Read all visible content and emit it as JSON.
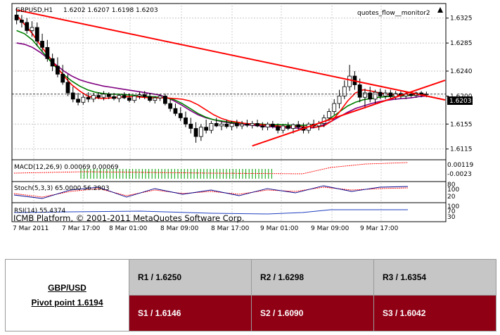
{
  "chart_data": {
    "type": "candlestick",
    "header": {
      "symbol": "GBPUSD,H1",
      "ohlc": "1.6202 1.6207 1.6198 1.6203",
      "indicator_name": "quotes_flow__monitor2"
    },
    "current_price": "1.6203",
    "y_ticks": [
      "1.6325",
      "1.6285",
      "1.6240",
      "1.6200",
      "1.6155",
      "1.6115"
    ],
    "ylim": [
      1.61,
      1.6345
    ],
    "x_labels": [
      "7 Mar 2011",
      "7 Mar 17:00",
      "8 Mar 01:00",
      "8 Mar 09:00",
      "8 Mar 17:00",
      "9 Mar 01:00",
      "9 Mar 09:00",
      "9 Mar 17:00"
    ],
    "candles": [
      [
        1.633,
        1.6342,
        1.6315,
        1.6322
      ],
      [
        1.6322,
        1.633,
        1.631,
        1.6318
      ],
      [
        1.6318,
        1.6325,
        1.63,
        1.6305
      ],
      [
        1.6305,
        1.632,
        1.6295,
        1.631
      ],
      [
        1.631,
        1.6318,
        1.628,
        1.6288
      ],
      [
        1.6288,
        1.63,
        1.627,
        1.6278
      ],
      [
        1.6278,
        1.629,
        1.6255,
        1.626
      ],
      [
        1.626,
        1.6268,
        1.624,
        1.6248
      ],
      [
        1.6248,
        1.6262,
        1.623,
        1.6235
      ],
      [
        1.6235,
        1.625,
        1.6218,
        1.6222
      ],
      [
        1.6222,
        1.6235,
        1.62,
        1.6205
      ],
      [
        1.6205,
        1.6215,
        1.619,
        1.6195
      ],
      [
        1.6195,
        1.6205,
        1.6185,
        1.619
      ],
      [
        1.619,
        1.6202,
        1.6186,
        1.6198
      ],
      [
        1.6198,
        1.6206,
        1.619,
        1.6195
      ],
      [
        1.6195,
        1.6205,
        1.619,
        1.6201
      ],
      [
        1.6201,
        1.6206,
        1.6195,
        1.6198
      ],
      [
        1.6198,
        1.6208,
        1.6193,
        1.6203
      ],
      [
        1.6203,
        1.6206,
        1.6195,
        1.6199
      ],
      [
        1.6199,
        1.6205,
        1.6193,
        1.6196
      ],
      [
        1.6196,
        1.6203,
        1.619,
        1.6201
      ],
      [
        1.6201,
        1.6206,
        1.6195,
        1.6197
      ],
      [
        1.6197,
        1.6204,
        1.619,
        1.6193
      ],
      [
        1.6193,
        1.6202,
        1.6189,
        1.62
      ],
      [
        1.62,
        1.6207,
        1.6195,
        1.6202
      ],
      [
        1.6202,
        1.6208,
        1.6195,
        1.6199
      ],
      [
        1.6199,
        1.6205,
        1.619,
        1.6193
      ],
      [
        1.6193,
        1.62,
        1.6188,
        1.6197
      ],
      [
        1.6197,
        1.6203,
        1.6192,
        1.62
      ],
      [
        1.62,
        1.6204,
        1.6185,
        1.6188
      ],
      [
        1.6188,
        1.6195,
        1.6175,
        1.618
      ],
      [
        1.618,
        1.6188,
        1.6168,
        1.6172
      ],
      [
        1.6172,
        1.6182,
        1.616,
        1.6165
      ],
      [
        1.6165,
        1.6175,
        1.615,
        1.6155
      ],
      [
        1.6155,
        1.6165,
        1.614,
        1.6148
      ],
      [
        1.6148,
        1.6158,
        1.6125,
        1.6135
      ],
      [
        1.6135,
        1.6155,
        1.6128,
        1.615
      ],
      [
        1.615,
        1.6162,
        1.614,
        1.6145
      ],
      [
        1.6145,
        1.616,
        1.614,
        1.6156
      ],
      [
        1.6156,
        1.6165,
        1.615,
        1.6152
      ],
      [
        1.6152,
        1.616,
        1.6145,
        1.6155
      ],
      [
        1.6155,
        1.6162,
        1.6148,
        1.6151
      ],
      [
        1.6151,
        1.616,
        1.6145,
        1.6156
      ],
      [
        1.6156,
        1.6162,
        1.6148,
        1.6152
      ],
      [
        1.6152,
        1.616,
        1.6147,
        1.6155
      ],
      [
        1.6155,
        1.6162,
        1.615,
        1.6153
      ],
      [
        1.6153,
        1.616,
        1.6148,
        1.6156
      ],
      [
        1.6156,
        1.6162,
        1.615,
        1.6152
      ],
      [
        1.6152,
        1.6158,
        1.6145,
        1.615
      ],
      [
        1.615,
        1.6158,
        1.6145,
        1.6155
      ],
      [
        1.6155,
        1.616,
        1.6148,
        1.6151
      ],
      [
        1.6151,
        1.6156,
        1.614,
        1.6145
      ],
      [
        1.6145,
        1.6155,
        1.614,
        1.6152
      ],
      [
        1.6152,
        1.6158,
        1.6145,
        1.6148
      ],
      [
        1.6148,
        1.6156,
        1.614,
        1.6154
      ],
      [
        1.6154,
        1.616,
        1.6145,
        1.615
      ],
      [
        1.615,
        1.6157,
        1.614,
        1.6145
      ],
      [
        1.6145,
        1.6158,
        1.614,
        1.6155
      ],
      [
        1.6155,
        1.6162,
        1.6148,
        1.6152
      ],
      [
        1.6152,
        1.616,
        1.6145,
        1.6156
      ],
      [
        1.6156,
        1.617,
        1.615,
        1.6165
      ],
      [
        1.6165,
        1.618,
        1.616,
        1.6175
      ],
      [
        1.6175,
        1.6195,
        1.617,
        1.6188
      ],
      [
        1.6188,
        1.621,
        1.618,
        1.62
      ],
      [
        1.62,
        1.6225,
        1.6195,
        1.6215
      ],
      [
        1.6215,
        1.625,
        1.6208,
        1.6232
      ],
      [
        1.6232,
        1.624,
        1.621,
        1.6218
      ],
      [
        1.6218,
        1.6228,
        1.619,
        1.6198
      ],
      [
        1.6198,
        1.6212,
        1.618,
        1.6205
      ],
      [
        1.6205,
        1.6215,
        1.619,
        1.6195
      ],
      [
        1.6195,
        1.621,
        1.6188,
        1.6206
      ],
      [
        1.6206,
        1.6212,
        1.6195,
        1.62
      ],
      [
        1.62,
        1.621,
        1.6195,
        1.6205
      ],
      [
        1.6205,
        1.621,
        1.6196,
        1.6199
      ],
      [
        1.6199,
        1.6208,
        1.6194,
        1.6204
      ],
      [
        1.6204,
        1.6208,
        1.6196,
        1.62
      ],
      [
        1.62,
        1.6207,
        1.6195,
        1.6203
      ],
      [
        1.6203,
        1.6207,
        1.6198,
        1.6201
      ],
      [
        1.6201,
        1.6207,
        1.6197,
        1.6205
      ],
      [
        1.6205,
        1.6208,
        1.6198,
        1.6202
      ],
      [
        1.6202,
        1.6207,
        1.6198,
        1.6203
      ]
    ],
    "ma_fast": [
      1.633,
      1.6315,
      1.63,
      1.6282,
      1.6265,
      1.6248,
      1.6232,
      1.6218,
      1.6208,
      1.62,
      1.6197,
      1.6196,
      1.6197,
      1.6198,
      1.6199,
      1.6199,
      1.6198,
      1.6197,
      1.6197,
      1.6197,
      1.6196,
      1.6195,
      1.6192,
      1.6186,
      1.6178,
      1.617,
      1.6164,
      1.616,
      1.6158,
      1.6156,
      1.6155,
      1.6154,
      1.6153,
      1.6152,
      1.6151,
      1.6151,
      1.6151,
      1.615,
      1.615,
      1.6152,
      1.616,
      1.6175,
      1.6192,
      1.6205,
      1.621,
      1.6208,
      1.6205,
      1.6203,
      1.6202,
      1.6202,
      1.6202,
      1.6203,
      1.6203
    ],
    "ma_mid": [
      1.6305,
      1.63,
      1.629,
      1.6275,
      1.626,
      1.6246,
      1.6234,
      1.6224,
      1.6216,
      1.621,
      1.6206,
      1.6204,
      1.6203,
      1.6203,
      1.6202,
      1.6201,
      1.62,
      1.6199,
      1.6198,
      1.6197,
      1.6194,
      1.6188,
      1.618,
      1.6172,
      1.6166,
      1.6162,
      1.616,
      1.6158,
      1.6157,
      1.6156,
      1.6155,
      1.6155,
      1.6154,
      1.6154,
      1.6154,
      1.6153,
      1.6153,
      1.6153,
      1.6154,
      1.6158,
      1.6166,
      1.6175,
      1.6184,
      1.619,
      1.6194,
      1.6196,
      1.6198,
      1.6199,
      1.62,
      1.62,
      1.6201,
      1.6202,
      1.6202
    ],
    "ma_slow": [
      1.6285,
      1.6283,
      1.6278,
      1.627,
      1.626,
      1.625,
      1.624,
      1.6232,
      1.6226,
      1.6222,
      1.6219,
      1.6216,
      1.6214,
      1.6212,
      1.621,
      1.6208,
      1.6206,
      1.6204,
      1.6202,
      1.6198,
      1.6192,
      1.6185,
      1.6177,
      1.617,
      1.6165,
      1.6162,
      1.6159,
      1.6157,
      1.6155,
      1.6154,
      1.6153,
      1.6152,
      1.6151,
      1.615,
      1.6149,
      1.6149,
      1.6148,
      1.6148,
      1.615,
      1.6154,
      1.616,
      1.6167,
      1.6174,
      1.618,
      1.6184,
      1.6188,
      1.6191,
      1.6193,
      1.6195,
      1.6196,
      1.6197,
      1.6199,
      1.62
    ],
    "trendlines": [
      {
        "from": [
          0,
          1.6338
        ],
        "to": [
          80,
          1.62
        ]
      },
      {
        "from": [
          46,
          1.612
        ],
        "to": [
          80,
          1.6215
        ]
      }
    ],
    "indicators": {
      "macd": {
        "label": "MACD(12,26,9) 0.00069 0.00069",
        "right_labels": [
          "0.00119",
          "-0.0023"
        ]
      },
      "stoch": {
        "label": "Stoch(5,3,3) 65.0000 56.2903",
        "right_labels": [
          "80",
          "100",
          "20"
        ]
      },
      "rsi": {
        "label": "RSI(14) 55.4374",
        "right_labels": [
          "100",
          "70",
          "30"
        ]
      }
    },
    "copyright": "ICMB Platform, © 2001-2011 MetaQuotes Software Corp."
  },
  "pivot": {
    "pair": "GBP/USD",
    "pivot_label": "Pivot point 1.6194",
    "resistance": [
      "R1 / 1.6250",
      "R2 / 1.6298",
      "R3 / 1.6354"
    ],
    "support": [
      "S1 / 1.6146",
      "S2 / 1.6090",
      "S3 / 1.6042"
    ]
  },
  "colors": {
    "bull_candle": "#ffffff",
    "bear_candle": "#000000",
    "ma_fast": "#ff0000",
    "ma_mid": "#008000",
    "ma_slow": "#800080",
    "trendline": "#ff0000",
    "resistance_bg": "#c6c6c6",
    "support_bg": "#8f0014"
  }
}
